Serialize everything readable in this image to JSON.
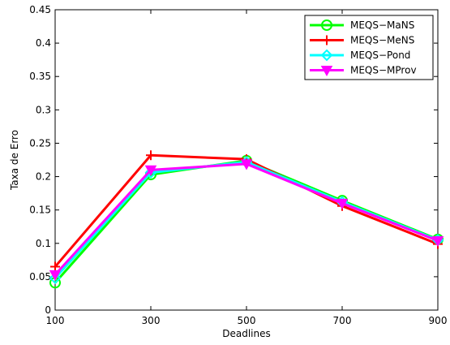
{
  "chart_data": {
    "type": "line",
    "title": "",
    "xlabel": "Deadlines",
    "ylabel": "Taxa de Erro",
    "x": [
      100,
      300,
      500,
      700,
      900
    ],
    "xlim": [
      100,
      900
    ],
    "ylim": [
      0,
      0.45
    ],
    "xticks": [
      "100",
      "300",
      "500",
      "700",
      "900"
    ],
    "yticks": [
      "0",
      "0.05",
      "0.1",
      "0.15",
      "0.2",
      "0.25",
      "0.3",
      "0.35",
      "0.4",
      "0.45"
    ],
    "grid": false,
    "legend_position": "top-right",
    "series": [
      {
        "name": "MEQS−MaNS",
        "color": "#00ff00",
        "marker": "circle",
        "values": [
          0.041,
          0.203,
          0.224,
          0.164,
          0.106
        ]
      },
      {
        "name": "MEQS−MeNS",
        "color": "#ff0000",
        "marker": "plus",
        "values": [
          0.065,
          0.232,
          0.226,
          0.156,
          0.099
        ]
      },
      {
        "name": "MEQS−Pond",
        "color": "#00ffff",
        "marker": "diamond",
        "values": [
          0.048,
          0.206,
          0.222,
          0.162,
          0.105
        ]
      },
      {
        "name": "MEQS−MProv",
        "color": "#ff00ff",
        "marker": "triangle-down",
        "values": [
          0.053,
          0.21,
          0.219,
          0.16,
          0.104
        ]
      }
    ]
  }
}
